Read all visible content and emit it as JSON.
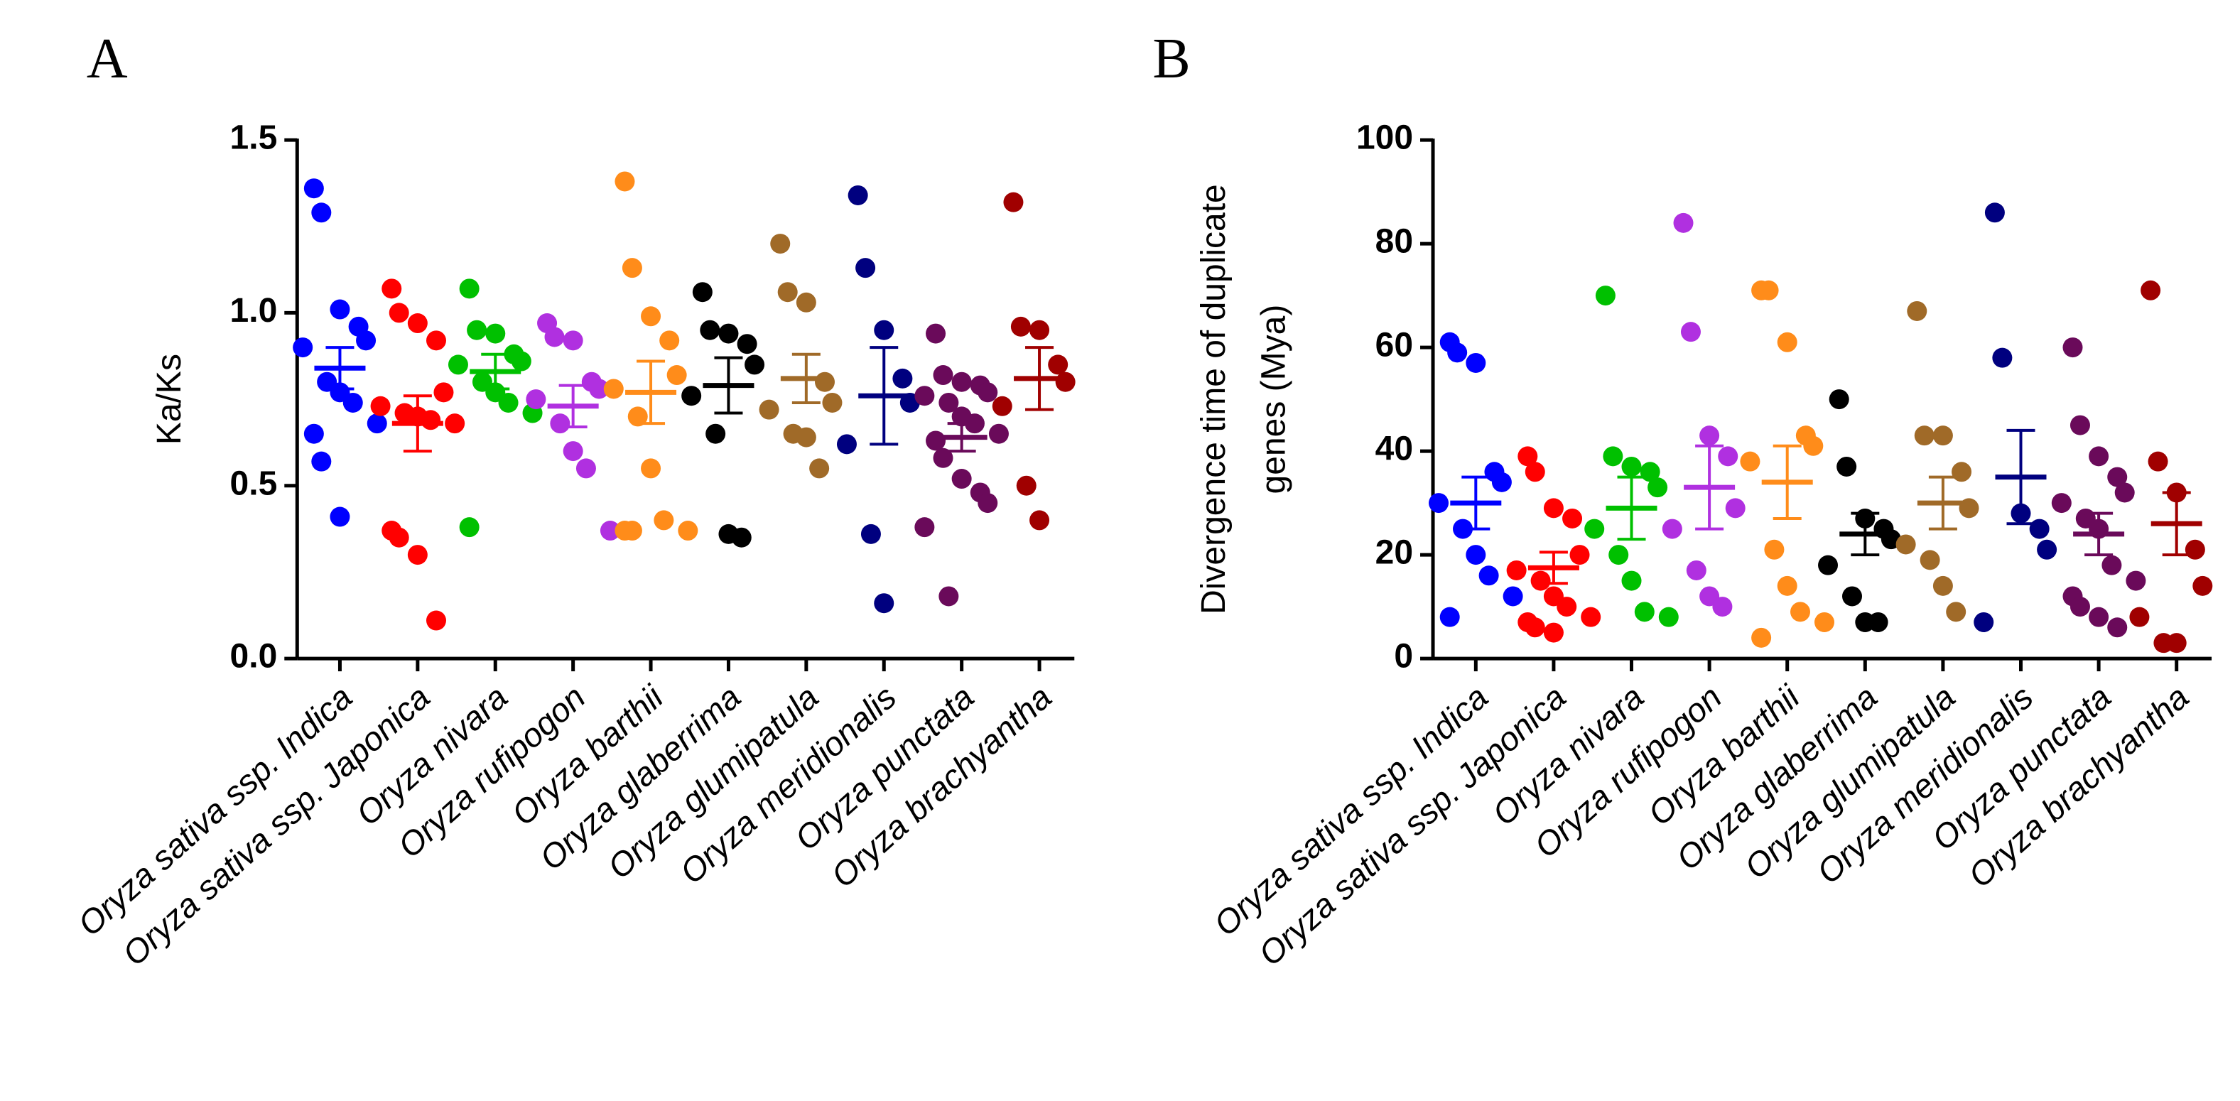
{
  "chart_data": [
    {
      "type": "strip",
      "panel": "A",
      "ylabel": [
        "Ka/Ks"
      ],
      "categories": [
        "Oryza sativa ssp. Indica",
        "Oryza sativa ssp. Japonica",
        "Oryza nivara",
        "Oryza rufipogon",
        "Oryza barthii",
        "Oryza glaberrima",
        "Oryza glumipatula",
        "Oryza meridionalis",
        "Oryza punctata",
        "Oryza brachyantha"
      ],
      "colors": [
        "#0000ff",
        "#ff0000",
        "#00c000",
        "#b030e0",
        "#ff8c1a",
        "#000000",
        "#a06a28",
        "#00007f",
        "#6a0a5a",
        "#a00000"
      ],
      "values": [
        [
          1.36,
          1.29,
          1.01,
          0.96,
          0.92,
          0.9,
          0.8,
          0.77,
          0.74,
          0.68,
          0.65,
          0.57,
          0.41
        ],
        [
          1.07,
          1.0,
          0.97,
          0.92,
          0.77,
          0.73,
          0.71,
          0.7,
          0.69,
          0.68,
          0.37,
          0.35,
          0.3,
          0.11
        ],
        [
          1.07,
          0.95,
          0.94,
          0.88,
          0.86,
          0.85,
          0.8,
          0.77,
          0.74,
          0.71,
          0.38
        ],
        [
          0.97,
          0.93,
          0.92,
          0.8,
          0.78,
          0.75,
          0.68,
          0.6,
          0.55,
          0.37
        ],
        [
          1.38,
          1.13,
          0.99,
          0.92,
          0.82,
          0.78,
          0.7,
          0.55,
          0.4,
          0.37,
          0.37,
          0.37
        ],
        [
          1.06,
          0.95,
          0.94,
          0.91,
          0.85,
          0.76,
          0.65,
          0.36,
          0.35
        ],
        [
          1.2,
          1.06,
          1.03,
          0.8,
          0.74,
          0.72,
          0.65,
          0.64,
          0.55
        ],
        [
          1.34,
          1.13,
          0.95,
          0.81,
          0.74,
          0.62,
          0.36,
          0.16
        ],
        [
          0.94,
          0.82,
          0.8,
          0.79,
          0.77,
          0.76,
          0.74,
          0.7,
          0.68,
          0.65,
          0.63,
          0.58,
          0.52,
          0.48,
          0.45,
          0.38,
          0.18
        ],
        [
          1.32,
          0.96,
          0.95,
          0.85,
          0.8,
          0.73,
          0.5,
          0.4
        ]
      ],
      "means": [
        0.84,
        0.68,
        0.83,
        0.73,
        0.77,
        0.79,
        0.81,
        0.76,
        0.64,
        0.81
      ],
      "errors": [
        0.06,
        0.08,
        0.05,
        0.06,
        0.09,
        0.08,
        0.07,
        0.14,
        0.04,
        0.09
      ],
      "ylim": [
        0,
        1.5
      ],
      "yticks": [
        {
          "value": 0,
          "label": "0.0"
        },
        0.5,
        {
          "value": 1,
          "label": "1.0"
        },
        1.5
      ]
    },
    {
      "type": "strip",
      "panel": "B",
      "ylabel": [
        "Divergence time of duplicate",
        "genes (Mya)"
      ],
      "categories": [
        "Oryza sativa ssp. Indica",
        "Oryza sativa ssp. Japonica",
        "Oryza nivara",
        "Oryza rufipogon",
        "Oryza barthii",
        "Oryza glaberrima",
        "Oryza glumipatula",
        "Oryza meridionalis",
        "Oryza punctata",
        "Oryza brachyantha"
      ],
      "colors": [
        "#0000ff",
        "#ff0000",
        "#00c000",
        "#b030e0",
        "#ff8c1a",
        "#000000",
        "#a06a28",
        "#00007f",
        "#6a0a5a",
        "#a00000"
      ],
      "values": [
        [
          61,
          59,
          57,
          36,
          34,
          30,
          25,
          20,
          16,
          12,
          8
        ],
        [
          39,
          36,
          29,
          27,
          20,
          17,
          15,
          12,
          10,
          8,
          7,
          6,
          5
        ],
        [
          70,
          39,
          37,
          36,
          33,
          25,
          20,
          15,
          9,
          8
        ],
        [
          84,
          63,
          43,
          39,
          29,
          25,
          17,
          12,
          10
        ],
        [
          71,
          71,
          61,
          43,
          41,
          38,
          21,
          14,
          9,
          7,
          4
        ],
        [
          50,
          37,
          27,
          25,
          23,
          18,
          12,
          7,
          7
        ],
        [
          67,
          43,
          43,
          36,
          29,
          22,
          19,
          14,
          9
        ],
        [
          86,
          58,
          28,
          25,
          21,
          7
        ],
        [
          60,
          45,
          39,
          35,
          32,
          30,
          27,
          25,
          18,
          15,
          12,
          10,
          8,
          6
        ],
        [
          71,
          38,
          32,
          21,
          14,
          8,
          3,
          3
        ]
      ],
      "means": [
        30,
        17.5,
        29,
        33,
        34,
        24,
        30,
        35,
        24,
        26
      ],
      "errors": [
        5,
        3,
        6,
        8,
        7,
        4,
        5,
        9,
        4,
        6
      ],
      "ylim": [
        0,
        100
      ],
      "yticks": [
        0,
        20,
        40,
        60,
        80,
        100
      ]
    }
  ]
}
